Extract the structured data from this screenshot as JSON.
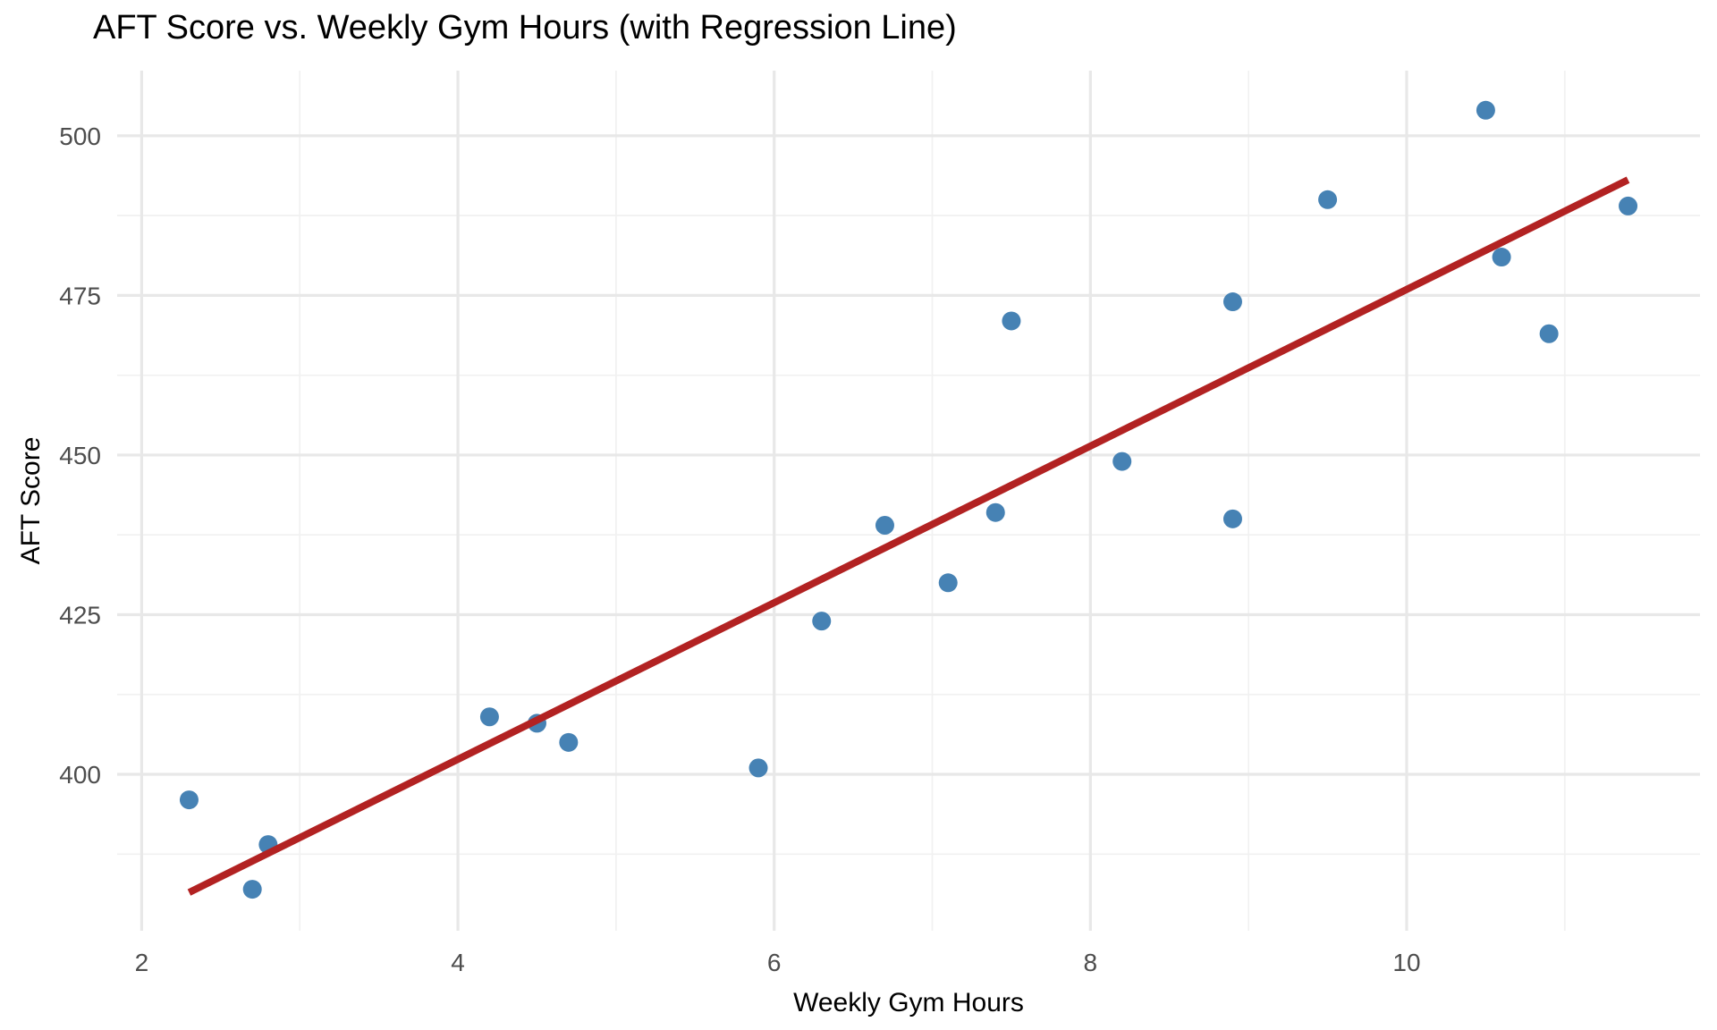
{
  "chart_data": {
    "type": "scatter",
    "title": "AFT Score vs. Weekly Gym Hours (with Regression Line)",
    "xlabel": "Weekly Gym Hours",
    "ylabel": "AFT Score",
    "x_ticks": [
      2,
      4,
      6,
      8,
      10
    ],
    "x_minor_ticks": [
      3,
      5,
      7,
      9,
      11
    ],
    "y_ticks": [
      400,
      425,
      450,
      475,
      500
    ],
    "y_minor_ticks": [
      387.5,
      412.5,
      437.5,
      462.5,
      487.5
    ],
    "xlim": [
      1.845,
      11.855
    ],
    "ylim": [
      375.5,
      510.2
    ],
    "grid": "major+minor",
    "legend": "none",
    "points": [
      [
        2.3,
        396
      ],
      [
        2.7,
        382
      ],
      [
        2.8,
        389
      ],
      [
        4.2,
        409
      ],
      [
        4.5,
        408
      ],
      [
        4.7,
        405
      ],
      [
        5.9,
        401
      ],
      [
        6.3,
        424
      ],
      [
        6.7,
        439
      ],
      [
        7.1,
        430
      ],
      [
        7.4,
        441
      ],
      [
        7.5,
        471
      ],
      [
        8.2,
        449
      ],
      [
        8.9,
        474
      ],
      [
        8.9,
        440
      ],
      [
        9.5,
        490
      ],
      [
        10.5,
        504
      ],
      [
        10.6,
        481
      ],
      [
        10.9,
        469
      ],
      [
        11.4,
        489
      ]
    ],
    "regression_line": {
      "x1": 2.3,
      "y1": 381.5,
      "x2": 11.4,
      "y2": 493.1
    },
    "colors": {
      "point": "#4682B4",
      "line": "#B22222",
      "grid_major": "#E8E8E8",
      "grid_minor": "#F1F1F1",
      "tick_label": "#4D4D4D",
      "text": "#000000",
      "background": "#FFFFFF"
    }
  }
}
